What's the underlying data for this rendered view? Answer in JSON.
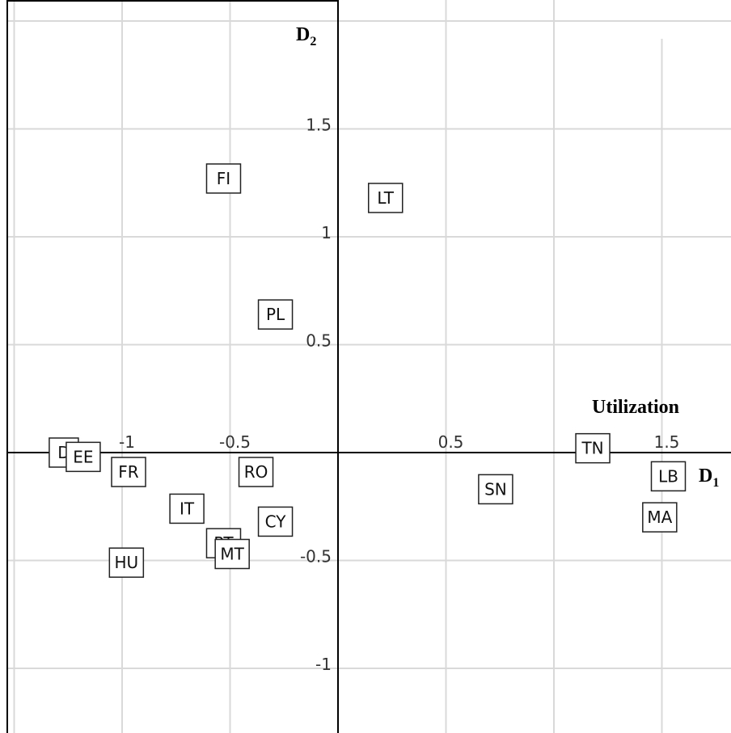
{
  "chart_data": {
    "type": "scatter",
    "title": "",
    "xlabel": "D",
    "xlabel_sub": "1",
    "ylabel": "D",
    "ylabel_sub": "2",
    "annotation": "Utilization",
    "xlim": [
      -1.55,
      1.8
    ],
    "ylim": [
      -1.35,
      2.05
    ],
    "grid": true,
    "x_ticks": [
      {
        "value": -1,
        "label": "-1"
      },
      {
        "value": -0.5,
        "label": "-0.5"
      },
      {
        "value": 0.5,
        "label": "0.5"
      },
      {
        "value": 1.5,
        "label": "1.5"
      }
    ],
    "y_ticks": [
      {
        "value": 1.5,
        "label": "1.5"
      },
      {
        "value": 1,
        "label": "1"
      },
      {
        "value": 0.5,
        "label": "0.5"
      },
      {
        "value": -0.5,
        "label": "-0.5"
      },
      {
        "value": -1,
        "label": "-1"
      }
    ],
    "points": [
      {
        "label": "FI",
        "x": -0.53,
        "y": 1.27
      },
      {
        "label": "LT",
        "x": 0.22,
        "y": 1.18
      },
      {
        "label": "PL",
        "x": -0.29,
        "y": 0.64
      },
      {
        "label": "TN",
        "x": 1.18,
        "y": 0.02
      },
      {
        "label": "D",
        "x": -1.27,
        "y": 0.0
      },
      {
        "label": "EE",
        "x": -1.18,
        "y": -0.02
      },
      {
        "label": "FR",
        "x": -0.97,
        "y": -0.09
      },
      {
        "label": "RO",
        "x": -0.38,
        "y": -0.09
      },
      {
        "label": "LB",
        "x": 1.53,
        "y": -0.11
      },
      {
        "label": "SN",
        "x": 0.73,
        "y": -0.17
      },
      {
        "label": "IT",
        "x": -0.7,
        "y": -0.26
      },
      {
        "label": "CY",
        "x": -0.29,
        "y": -0.32
      },
      {
        "label": "MA",
        "x": 1.49,
        "y": -0.3
      },
      {
        "label": "PT",
        "x": -0.53,
        "y": -0.42
      },
      {
        "label": "MT",
        "x": -0.49,
        "y": -0.47
      },
      {
        "label": "HU",
        "x": -0.98,
        "y": -0.51
      }
    ]
  }
}
